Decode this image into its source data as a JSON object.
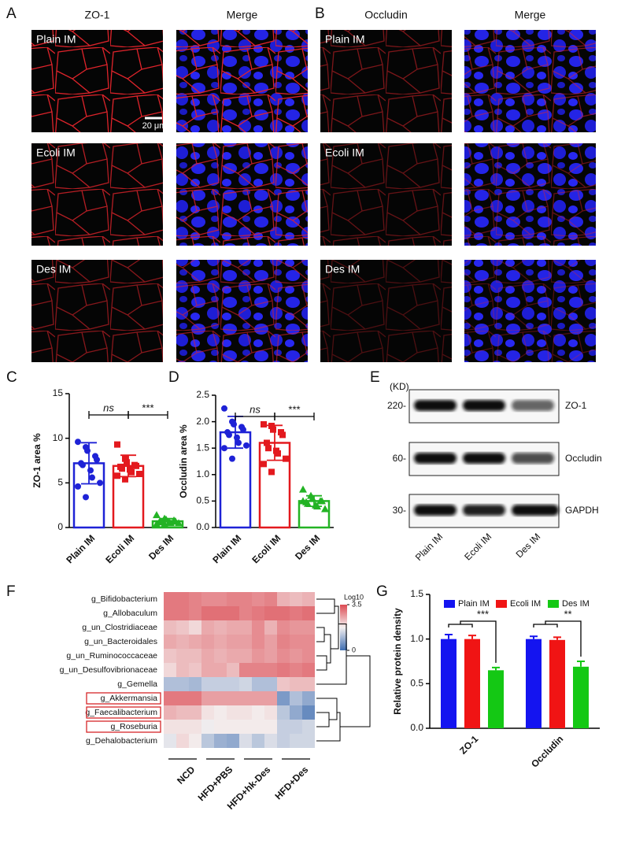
{
  "micrographs": [
    {
      "letter": "A",
      "columns": [
        "ZO-1",
        "Merge"
      ],
      "rows": [
        "Plain IM",
        "Ecoli IM",
        "Des IM"
      ],
      "scale_bar": "20 μm"
    },
    {
      "letter": "B",
      "columns": [
        "Occludin",
        "Merge"
      ],
      "rows": [
        "Plain IM",
        "Ecoli IM",
        "Des IM"
      ]
    }
  ],
  "blot": {
    "letter": "E",
    "unit": "(KD)",
    "markers": [
      "220-",
      "60-",
      "30-"
    ],
    "proteins": [
      "ZO-1",
      "Occludin",
      "GAPDH"
    ],
    "lanes": [
      "Plain IM",
      "Ecoli IM",
      "Des IM"
    ]
  },
  "chart_data": [
    {
      "type": "bar",
      "letter": "C",
      "y_label": "ZO-1 area %",
      "categories": [
        "Plain IM",
        "Ecoli IM",
        "Des IM"
      ],
      "values": [
        7.2,
        6.9,
        0.7
      ],
      "errors": [
        2.3,
        1.2,
        0.3
      ],
      "points": [
        [
          9.6,
          9.0,
          8.6,
          8.0,
          7.6,
          7.2,
          7.0,
          6.4,
          5.6,
          5.0,
          4.6,
          3.4
        ],
        [
          9.3,
          7.7,
          7.3,
          7.0,
          6.9,
          6.8,
          6.6,
          6.5,
          6.2,
          6.0,
          5.8,
          5.4
        ],
        [
          1.4,
          1.0,
          0.9,
          0.8,
          0.7,
          0.7,
          0.6,
          0.6,
          0.5,
          0.5,
          0.4,
          0.4
        ]
      ],
      "markers": [
        "circle",
        "square",
        "triangle"
      ],
      "colors": [
        "#1e22d6",
        "#e3191e",
        "#23b324"
      ],
      "annotations": [
        "ns",
        "***"
      ],
      "ylim": [
        0,
        15
      ],
      "yticks": [
        0,
        5,
        10,
        15
      ]
    },
    {
      "type": "bar",
      "letter": "D",
      "y_label": "Occludin area %",
      "categories": [
        "Plain IM",
        "Ecoli IM",
        "Des IM"
      ],
      "values": [
        1.8,
        1.6,
        0.5
      ],
      "errors": [
        0.3,
        0.33,
        0.1
      ],
      "points": [
        [
          2.25,
          2.0,
          1.95,
          1.9,
          1.85,
          1.8,
          1.75,
          1.7,
          1.6,
          1.55,
          1.5,
          1.3
        ],
        [
          1.95,
          1.92,
          1.85,
          1.8,
          1.75,
          1.6,
          1.5,
          1.45,
          1.4,
          1.3,
          1.2,
          1.05
        ],
        [
          0.72,
          0.6,
          0.55,
          0.5,
          0.5,
          0.48,
          0.45,
          0.42,
          0.4,
          0.35,
          0.5
        ]
      ],
      "markers": [
        "circle",
        "square",
        "triangle"
      ],
      "colors": [
        "#1e22d6",
        "#e3191e",
        "#23b324"
      ],
      "annotations": [
        "ns",
        "***"
      ],
      "ylim": [
        0,
        2.5
      ],
      "yticks": [
        {
          "value": 0,
          "label": "0.0"
        },
        0.5,
        {
          "value": 1,
          "label": "1.0"
        },
        1.5,
        {
          "value": 2,
          "label": "2.0"
        },
        2.5
      ]
    },
    {
      "type": "heatmap",
      "letter": "F",
      "rows": [
        "g_Bifidobacterium",
        "g_Allobaculum",
        "g_un_Clostridiaceae",
        "g_un_Bacteroidales",
        "g_un_Ruminococcaceae",
        "g_un_Desulfovibrionaceae",
        "g_Gemella",
        "g_Akkermansia",
        "g_Faecalibacterium",
        "g_Roseburia",
        "g_Dehalobacterium"
      ],
      "groups": [
        "NCD",
        "HFD+PBS",
        "HFD+hk-Des",
        "HFD+Des"
      ],
      "highlighted": [
        7,
        8,
        9
      ],
      "highlight_color": "#d62728",
      "values": [
        [
          3.0,
          3.0,
          2.9,
          2.8,
          2.8,
          2.9,
          2.9,
          2.8,
          2.9,
          2.4,
          2.3,
          2.4
        ],
        [
          3.0,
          3.0,
          2.9,
          3.1,
          3.1,
          3.1,
          2.9,
          3.0,
          3.1,
          3.1,
          3.0,
          3.1
        ],
        [
          2.3,
          2.2,
          2.0,
          2.5,
          2.4,
          2.5,
          2.5,
          2.8,
          2.4,
          2.8,
          2.7,
          2.7
        ],
        [
          2.5,
          2.4,
          2.5,
          2.6,
          2.5,
          2.6,
          2.6,
          2.8,
          2.6,
          2.9,
          2.8,
          2.8
        ],
        [
          2.2,
          2.3,
          2.3,
          2.5,
          2.4,
          2.5,
          2.5,
          2.7,
          2.6,
          2.8,
          2.7,
          2.8
        ],
        [
          2.0,
          2.3,
          2.2,
          2.5,
          2.5,
          2.3,
          2.9,
          2.9,
          2.9,
          3.0,
          2.9,
          3.0
        ],
        [
          1.1,
          1.1,
          1.0,
          1.3,
          1.3,
          1.3,
          1.4,
          1.1,
          1.1,
          2.2,
          2.3,
          2.3
        ],
        [
          3.0,
          3.0,
          3.0,
          2.6,
          2.6,
          2.6,
          2.6,
          2.6,
          2.6,
          0.6,
          1.1,
          0.8
        ],
        [
          2.4,
          2.3,
          2.3,
          1.9,
          1.8,
          1.9,
          1.9,
          1.8,
          1.9,
          1.2,
          0.8,
          0.4
        ],
        [
          1.9,
          1.9,
          1.9,
          1.7,
          1.8,
          1.8,
          1.8,
          1.8,
          1.8,
          1.3,
          1.3,
          1.4
        ],
        [
          1.6,
          2.0,
          1.8,
          1.2,
          0.9,
          0.8,
          1.5,
          1.2,
          1.5,
          1.3,
          1.4,
          1.4
        ]
      ],
      "colormap": [
        "#3d6db1",
        "#f4f0f0",
        "#dc4a52"
      ],
      "clim": [
        0,
        3.5
      ],
      "colorbar_title": "Log10",
      "cticks": [
        0,
        3.5
      ]
    },
    {
      "type": "grouped_bar",
      "letter": "G",
      "y_label": "Relative protein density",
      "categories": [
        "ZO-1",
        "Occludin"
      ],
      "series": [
        {
          "name": "Plain IM",
          "color": "#1414f0",
          "values": [
            1.0,
            1.0
          ],
          "errors": [
            0.05,
            0.03
          ]
        },
        {
          "name": "Ecoli IM",
          "color": "#f01414",
          "values": [
            1.0,
            0.99
          ],
          "errors": [
            0.04,
            0.03
          ]
        },
        {
          "name": "Des IM",
          "color": "#14c814",
          "values": [
            0.65,
            0.69
          ],
          "errors": [
            0.03,
            0.06
          ]
        }
      ],
      "annotations": [
        "***",
        "**"
      ],
      "legend": "top",
      "ylim": [
        0,
        1.5
      ],
      "yticks": [
        {
          "value": 0,
          "label": "0.0"
        },
        0.5,
        {
          "value": 1,
          "label": "1.0"
        },
        1.5
      ]
    }
  ]
}
